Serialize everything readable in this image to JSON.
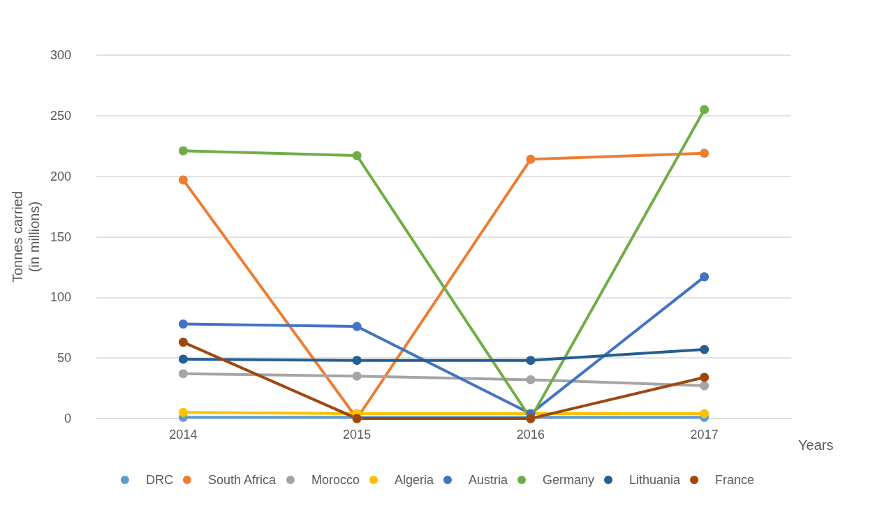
{
  "chart_data": {
    "type": "line",
    "xlabel": "Years",
    "ylabel": "Tonnes carried\n(in millions)",
    "categories": [
      "2014",
      "2015",
      "2016",
      "2017"
    ],
    "series": [
      {
        "name": "DRC",
        "color": "#5b9bd5",
        "values": [
          1,
          1,
          1,
          1
        ]
      },
      {
        "name": "South Africa",
        "color": "#ed7d31",
        "values": [
          197,
          0,
          214,
          219
        ]
      },
      {
        "name": "Morocco",
        "color": "#a5a5a5",
        "values": [
          37,
          35,
          32,
          27
        ]
      },
      {
        "name": "Algeria",
        "color": "#ffc000",
        "values": [
          5,
          4,
          4,
          4
        ]
      },
      {
        "name": "Austria",
        "color": "#4472c4",
        "values": [
          78,
          76,
          4,
          117
        ]
      },
      {
        "name": "Germany",
        "color": "#70ad47",
        "values": [
          221,
          217,
          0,
          255
        ]
      },
      {
        "name": "Lithuania",
        "color": "#255e91",
        "values": [
          49,
          48,
          48,
          57
        ]
      },
      {
        "name": "France",
        "color": "#9e480e",
        "values": [
          63,
          0,
          0,
          34
        ]
      }
    ],
    "ylim": [
      0,
      300
    ],
    "yticks": [
      0,
      50,
      100,
      150,
      200,
      250,
      300
    ],
    "grid": "y",
    "legend": "bottom",
    "marker": "circle",
    "line_style": "solid"
  }
}
